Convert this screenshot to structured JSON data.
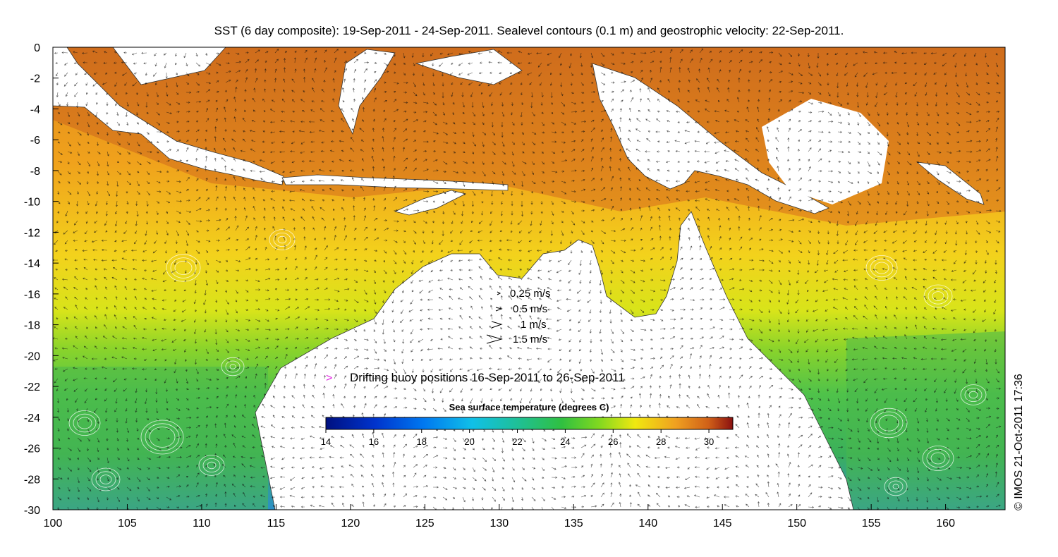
{
  "title": "SST (6 day composite): 19-Sep-2011 - 24-Sep-2011. Sealevel contours (0.1 m) and geostrophic velocity: 22-Sep-2011.",
  "axes": {
    "x_ticks": [
      "100",
      "105",
      "110",
      "115",
      "120",
      "125",
      "130",
      "135",
      "140",
      "145",
      "150",
      "155",
      "160"
    ],
    "y_ticks": [
      "0",
      "-2",
      "-4",
      "-6",
      "-8",
      "-10",
      "-12",
      "-14",
      "-16",
      "-18",
      "-20",
      "-22",
      "-24",
      "-26",
      "-28",
      "-30"
    ],
    "lon_range": [
      100,
      164
    ],
    "lat_range": [
      -30,
      0
    ]
  },
  "velocity_legend": [
    {
      "label": "0.25 m/s",
      "speed": 0.25
    },
    {
      "label": "0.5 m/s",
      "speed": 0.5
    },
    {
      "label": "1 m/s",
      "speed": 1
    },
    {
      "label": "1.5 m/s",
      "speed": 1.5
    }
  ],
  "buoy_legend": {
    "marker": ">",
    "label": "Drifting buoy positions 16-Sep-2011 to 26-Sep-2011",
    "color": "#e020e0"
  },
  "colorbar": {
    "title": "Sea surface temperature (degrees C)",
    "ticks": [
      "14",
      "16",
      "18",
      "20",
      "22",
      "24",
      "26",
      "28",
      "30"
    ],
    "range": [
      14,
      31
    ]
  },
  "stamp": "© IMOS 21-Oct-2011 17:36"
}
